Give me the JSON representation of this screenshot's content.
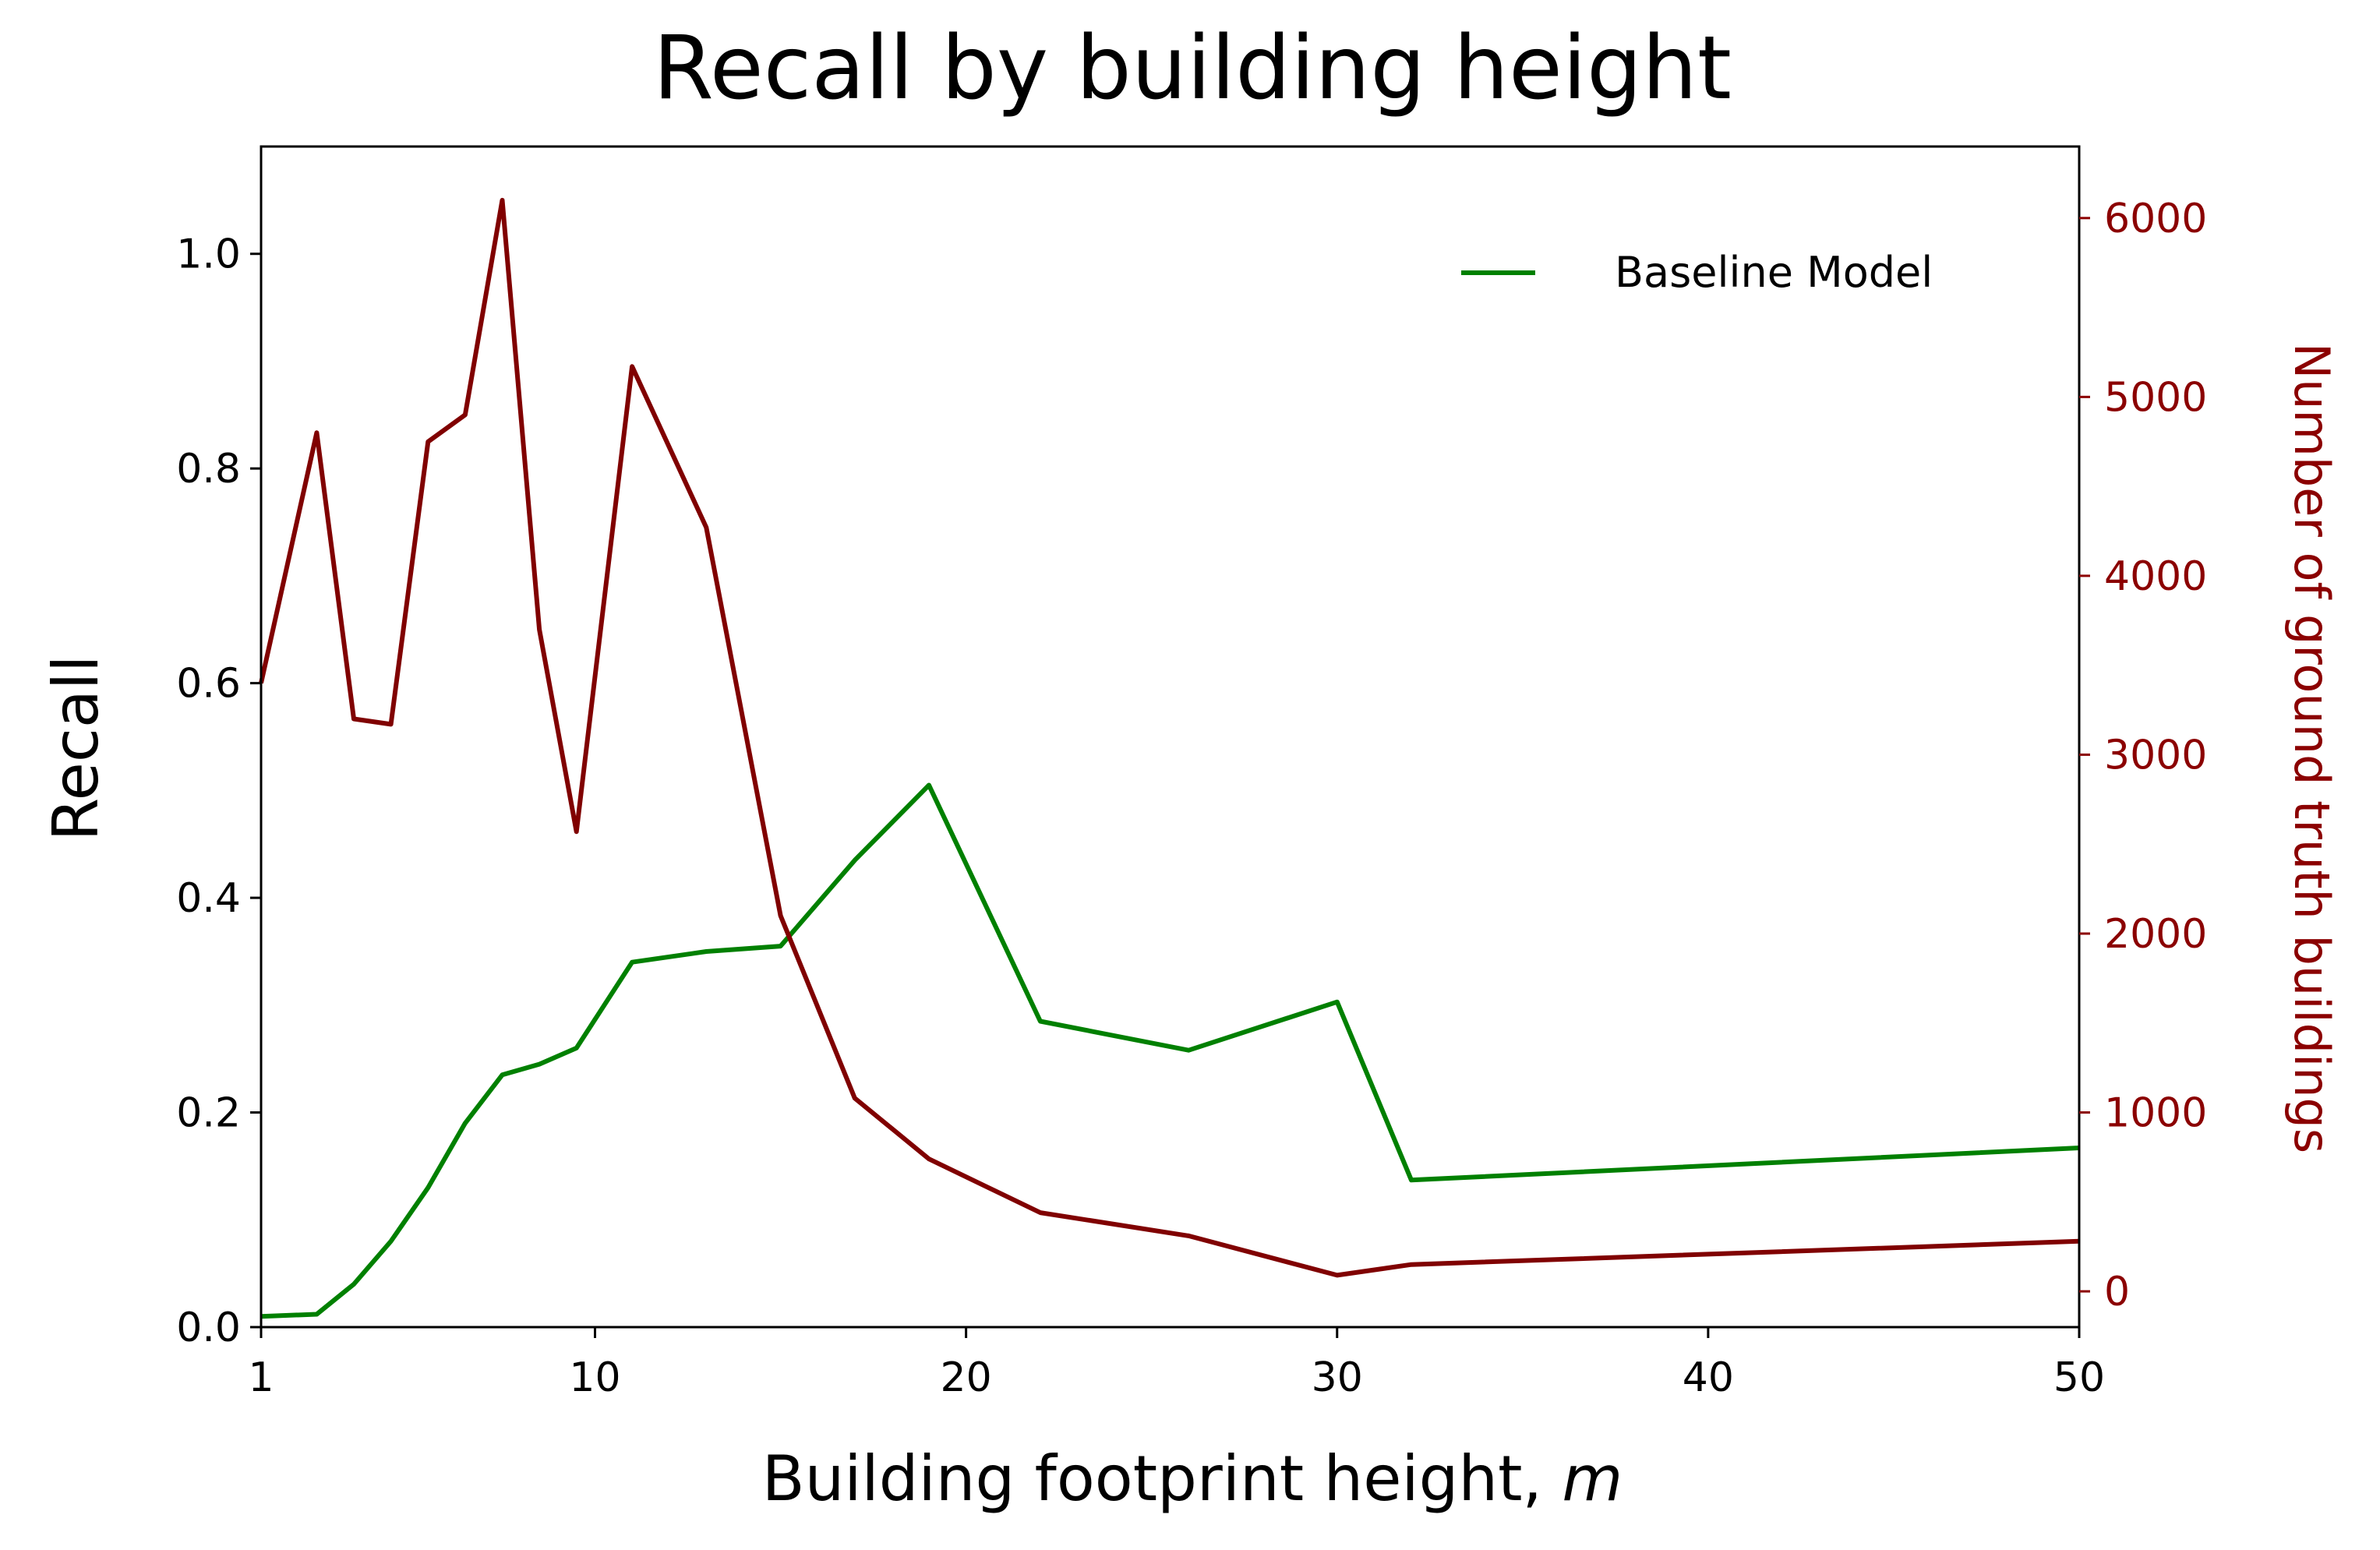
{
  "chart_data": {
    "type": "line",
    "title": "Recall by building height",
    "xlabel": "Building footprint height, ",
    "xlabel_italic": "m",
    "ylabel": "Recall",
    "ylabel_right": "Number of ground truth buildings",
    "xlim": [
      1,
      50
    ],
    "ylim": [
      0,
      1.1
    ],
    "ylim_right": [
      -200,
      6400
    ],
    "x_ticks": [
      1,
      10,
      20,
      30,
      40,
      50
    ],
    "x_tick_labels": [
      "1",
      "10",
      "20",
      "30",
      "40",
      "50"
    ],
    "y_ticks": [
      0,
      0.2,
      0.4,
      0.6,
      0.8,
      1.0
    ],
    "y_tick_labels": [
      "0.0",
      "0.2",
      "0.4",
      "0.6",
      "0.8",
      "1.0"
    ],
    "y_right_ticks": [
      0,
      1000,
      2000,
      3000,
      4000,
      5000,
      6000
    ],
    "y_right_tick_labels": [
      "0",
      "1000",
      "2000",
      "3000",
      "4000",
      "5000",
      "6000"
    ],
    "grid": false,
    "legend_position": "top-right",
    "series": [
      {
        "name": "Baseline Model",
        "axis": "left",
        "color": "#008000",
        "x": [
          1,
          2.5,
          3.5,
          4.5,
          5.5,
          6.5,
          7.5,
          8.5,
          9.5,
          11,
          13,
          15,
          17,
          19,
          22,
          26,
          30,
          32,
          50
        ],
        "y": [
          0.01,
          0.012,
          0.04,
          0.08,
          0.13,
          0.19,
          0.235,
          0.245,
          0.26,
          0.34,
          0.35,
          0.355,
          0.435,
          0.505,
          0.285,
          0.258,
          0.303,
          0.137,
          0.167
        ]
      },
      {
        "name": "",
        "axis": "right",
        "color": "#800000",
        "x": [
          1,
          2.5,
          3.5,
          4.5,
          5.5,
          6.5,
          7.5,
          8.5,
          9.5,
          11,
          13,
          15,
          17,
          19,
          22,
          26,
          30,
          32,
          50
        ],
        "y": [
          3400,
          4800,
          3200,
          3170,
          4750,
          4900,
          6100,
          3700,
          2570,
          5170,
          4270,
          2100,
          1080,
          740,
          440,
          310,
          90,
          150,
          280
        ]
      }
    ]
  }
}
